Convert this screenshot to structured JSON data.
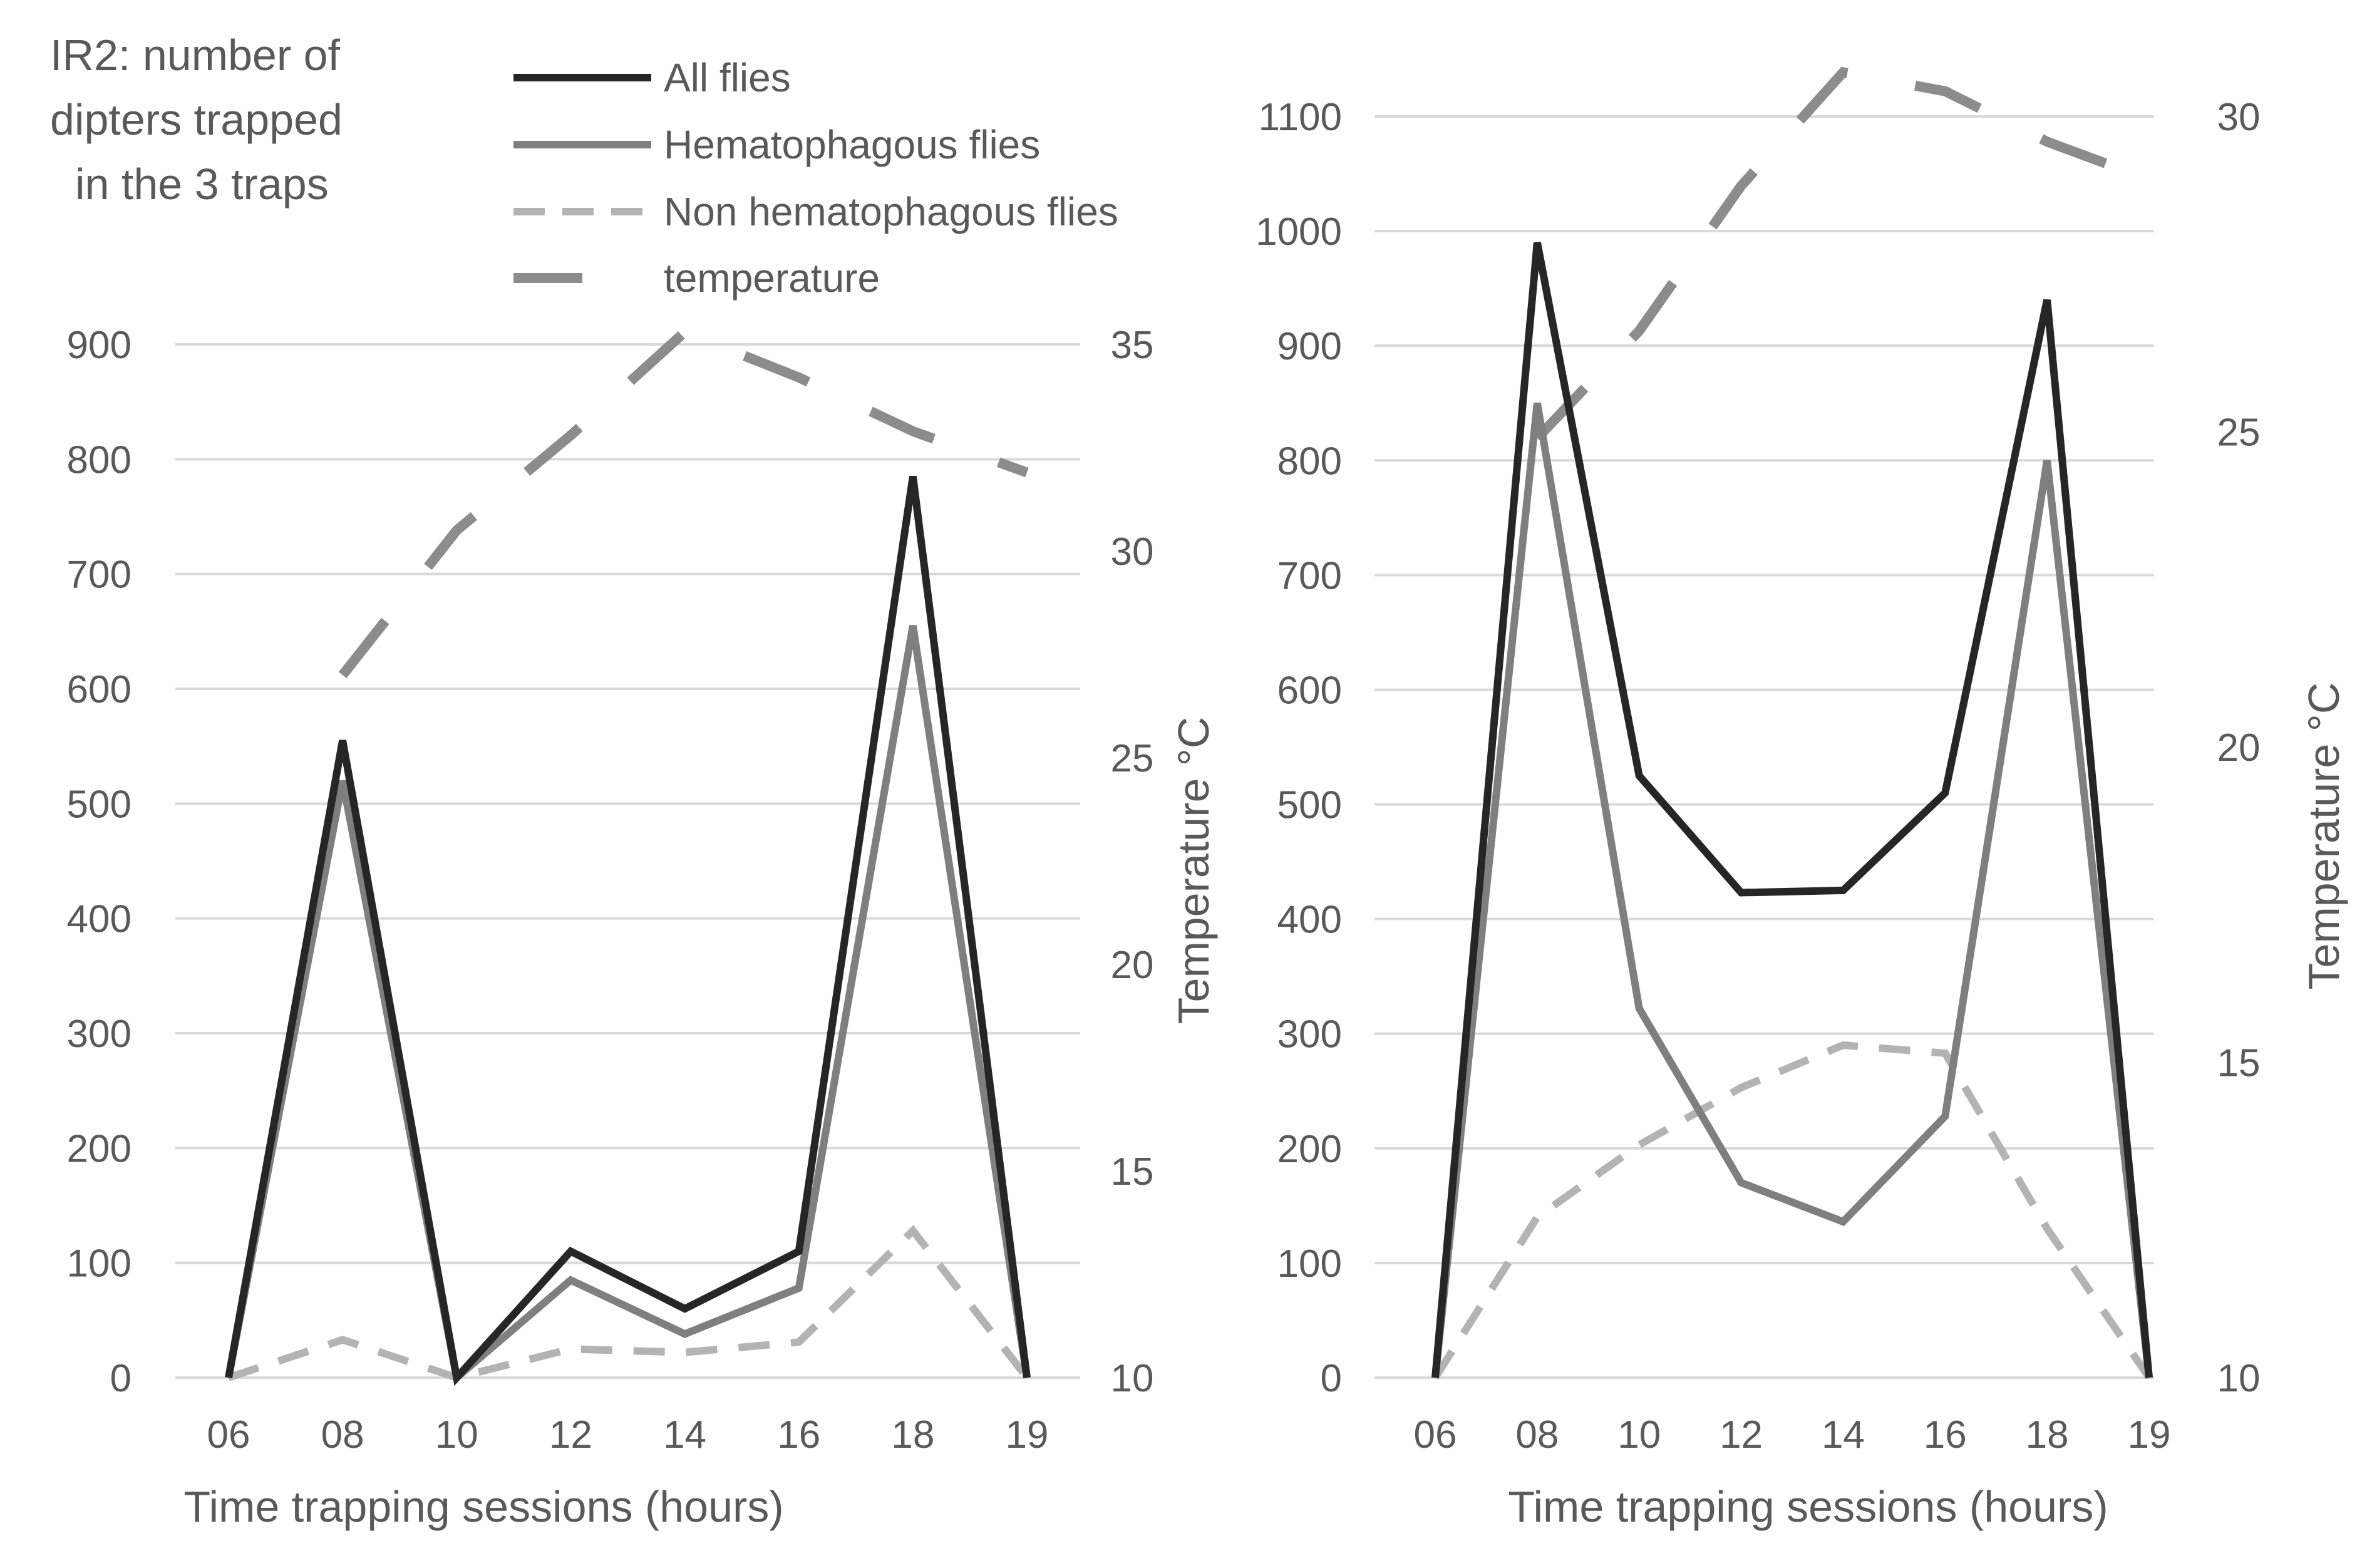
{
  "chart_data": [
    {
      "type": "line",
      "title": "IR2: number of dipters trapped in the 3 traps",
      "title_lines": [
        "IR2: number of",
        "dipters trapped",
        "in the 3 traps"
      ],
      "xlabel": "Time trapping sessions (hours)",
      "ylabel": "",
      "y2label": "Temperature °C",
      "categories": [
        "06",
        "08",
        "10",
        "12",
        "14",
        "16",
        "18",
        "19"
      ],
      "ylim": [
        0,
        900
      ],
      "yticks": [
        0,
        100,
        200,
        300,
        400,
        500,
        600,
        700,
        800,
        900
      ],
      "y2lim": [
        10,
        35
      ],
      "y2ticks": [
        10,
        15,
        20,
        25,
        30,
        35
      ],
      "grid": true,
      "legend_position": "top",
      "series": [
        {
          "name": "All flies",
          "axis": "left",
          "color": "#262626",
          "style": "solid",
          "values": [
            0,
            555,
            0,
            110,
            60,
            110,
            785,
            0
          ]
        },
        {
          "name": "Hematophagous flies",
          "axis": "left",
          "color": "#7f7f7f",
          "style": "solid",
          "values": [
            0,
            520,
            0,
            85,
            38,
            78,
            655,
            0
          ]
        },
        {
          "name": "Non hematophagous flies",
          "axis": "left",
          "color": "#b3b3b3",
          "style": "dashed",
          "values": [
            0,
            33,
            0,
            25,
            22,
            31,
            128,
            0
          ]
        },
        {
          "name": "temperature",
          "axis": "right",
          "color": "#8c8c8c",
          "style": "longdash",
          "values": [
            null,
            27.0,
            30.5,
            32.8,
            35.3,
            34.2,
            32.9,
            31.9
          ]
        }
      ]
    },
    {
      "type": "line",
      "title": "",
      "xlabel": "Time trapping sessions (hours)",
      "ylabel": "",
      "y2label": "Temperature °C",
      "categories": [
        "06",
        "08",
        "10",
        "12",
        "14",
        "16",
        "18",
        "19"
      ],
      "ylim": [
        0,
        1100
      ],
      "yticks": [
        0,
        100,
        200,
        300,
        400,
        500,
        600,
        700,
        800,
        900,
        1000,
        1100
      ],
      "y2lim": [
        10,
        30
      ],
      "y2ticks": [
        10,
        15,
        20,
        25,
        30
      ],
      "grid": true,
      "series": [
        {
          "name": "All flies",
          "axis": "left",
          "color": "#262626",
          "style": "solid",
          "values": [
            0,
            990,
            525,
            423,
            425,
            510,
            940,
            0
          ]
        },
        {
          "name": "Hematophagous flies",
          "axis": "left",
          "color": "#7f7f7f",
          "style": "solid",
          "values": [
            0,
            850,
            322,
            170,
            136,
            228,
            800,
            0
          ]
        },
        {
          "name": "Non hematophagous flies",
          "axis": "left",
          "color": "#b3b3b3",
          "style": "dashed",
          "values": [
            0,
            140,
            203,
            253,
            290,
            283,
            130,
            0
          ]
        },
        {
          "name": "temperature",
          "axis": "right",
          "color": "#8c8c8c",
          "style": "longdash",
          "values": [
            null,
            24.9,
            26.6,
            28.9,
            30.7,
            30.4,
            29.6,
            29.0
          ]
        }
      ]
    }
  ]
}
